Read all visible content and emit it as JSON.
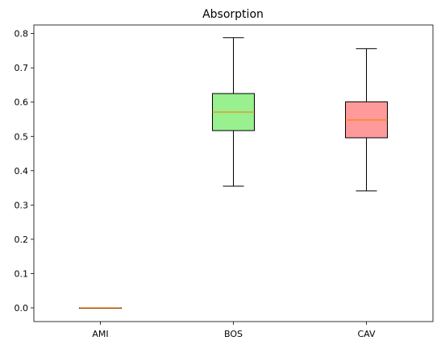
{
  "chart_data": {
    "type": "boxplot",
    "title": "Absorption",
    "xlabel": "",
    "ylabel": "",
    "ylim": [
      -0.04,
      0.825
    ],
    "yticks": [
      0.0,
      0.1,
      0.2,
      0.3,
      0.4,
      0.5,
      0.6,
      0.7,
      0.8
    ],
    "ytick_labels": [
      "0.0",
      "0.1",
      "0.2",
      "0.3",
      "0.4",
      "0.5",
      "0.6",
      "0.7",
      "0.8"
    ],
    "categories": [
      "AMI",
      "BOS",
      "CAV"
    ],
    "boxes": [
      {
        "category": "AMI",
        "whisker_low": 0.0,
        "q1": 0.0,
        "median": 0.0,
        "q3": 0.0,
        "whisker_high": 0.0,
        "fill": "#ff4500"
      },
      {
        "category": "BOS",
        "whisker_low": 0.355,
        "q1": 0.517,
        "median": 0.571,
        "q3": 0.625,
        "whisker_high": 0.788,
        "fill": "#98f08e"
      },
      {
        "category": "CAV",
        "whisker_low": 0.341,
        "q1": 0.496,
        "median": 0.548,
        "q3": 0.601,
        "whisker_high": 0.756,
        "fill": "#ff9a9a"
      }
    ],
    "grid": false,
    "colors": {
      "median_line": "#ff7f0e",
      "box_edge": "#000000",
      "axes": "#000000"
    }
  }
}
